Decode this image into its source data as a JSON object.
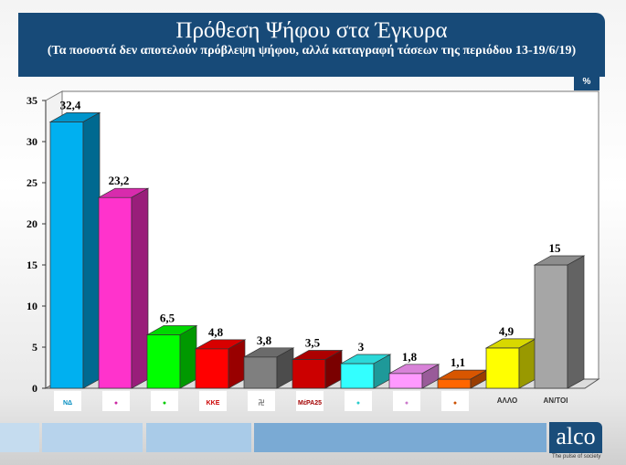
{
  "header": {
    "title": "Πρόθεση Ψήφου στα Έγκυρα",
    "subtitle": "(Τα ποσοστά δεν αποτελούν πρόβλεψη ψήφου, αλλά καταγραφή τάσεων της περιόδου 13-19/6/19)"
  },
  "unit_badge": "%",
  "brand": {
    "name": "alco",
    "tagline": "The pulse of society"
  },
  "chart_data": {
    "type": "bar",
    "title": "Πρόθεση Ψήφου στα Έγκυρα",
    "categories": [
      "ΝΔ",
      "ΣΥΡΙΖΑ",
      "ΚΙΝΑΛ",
      "ΚΚΕ",
      "Χρυσή Αυγή",
      "ΜέΡΑ25",
      "Ελληνική Λύση",
      "Πλεύση Ελευθερίας",
      "Ένωση Κεντρώων",
      "ΑΛΛΟ",
      "ΑΝ/ΤΟΙ"
    ],
    "category_labels_shown_as_text": [
      "ΑΛΛΟ",
      "ΑΝ/ΤΟΙ"
    ],
    "values": [
      32.4,
      23.2,
      6.5,
      4.8,
      3.8,
      3.5,
      3,
      1.8,
      1.1,
      4.9,
      15
    ],
    "value_labels": [
      "32,4",
      "23,2",
      "6,5",
      "4,8",
      "3,8",
      "3,5",
      "3",
      "1,8",
      "1,1",
      "4,9",
      "15"
    ],
    "colors": [
      "#00b0f0",
      "#ff33cc",
      "#00ff00",
      "#ff0000",
      "#7f7f7f",
      "#cc0000",
      "#33ffff",
      "#ff99ff",
      "#ff6600",
      "#ffff00",
      "#a6a6a6"
    ],
    "yticks": [
      0,
      5,
      10,
      15,
      20,
      25,
      30,
      35
    ],
    "ylim": [
      0,
      35
    ],
    "xlabel": "",
    "ylabel": "",
    "grid": false,
    "style": "3d"
  }
}
